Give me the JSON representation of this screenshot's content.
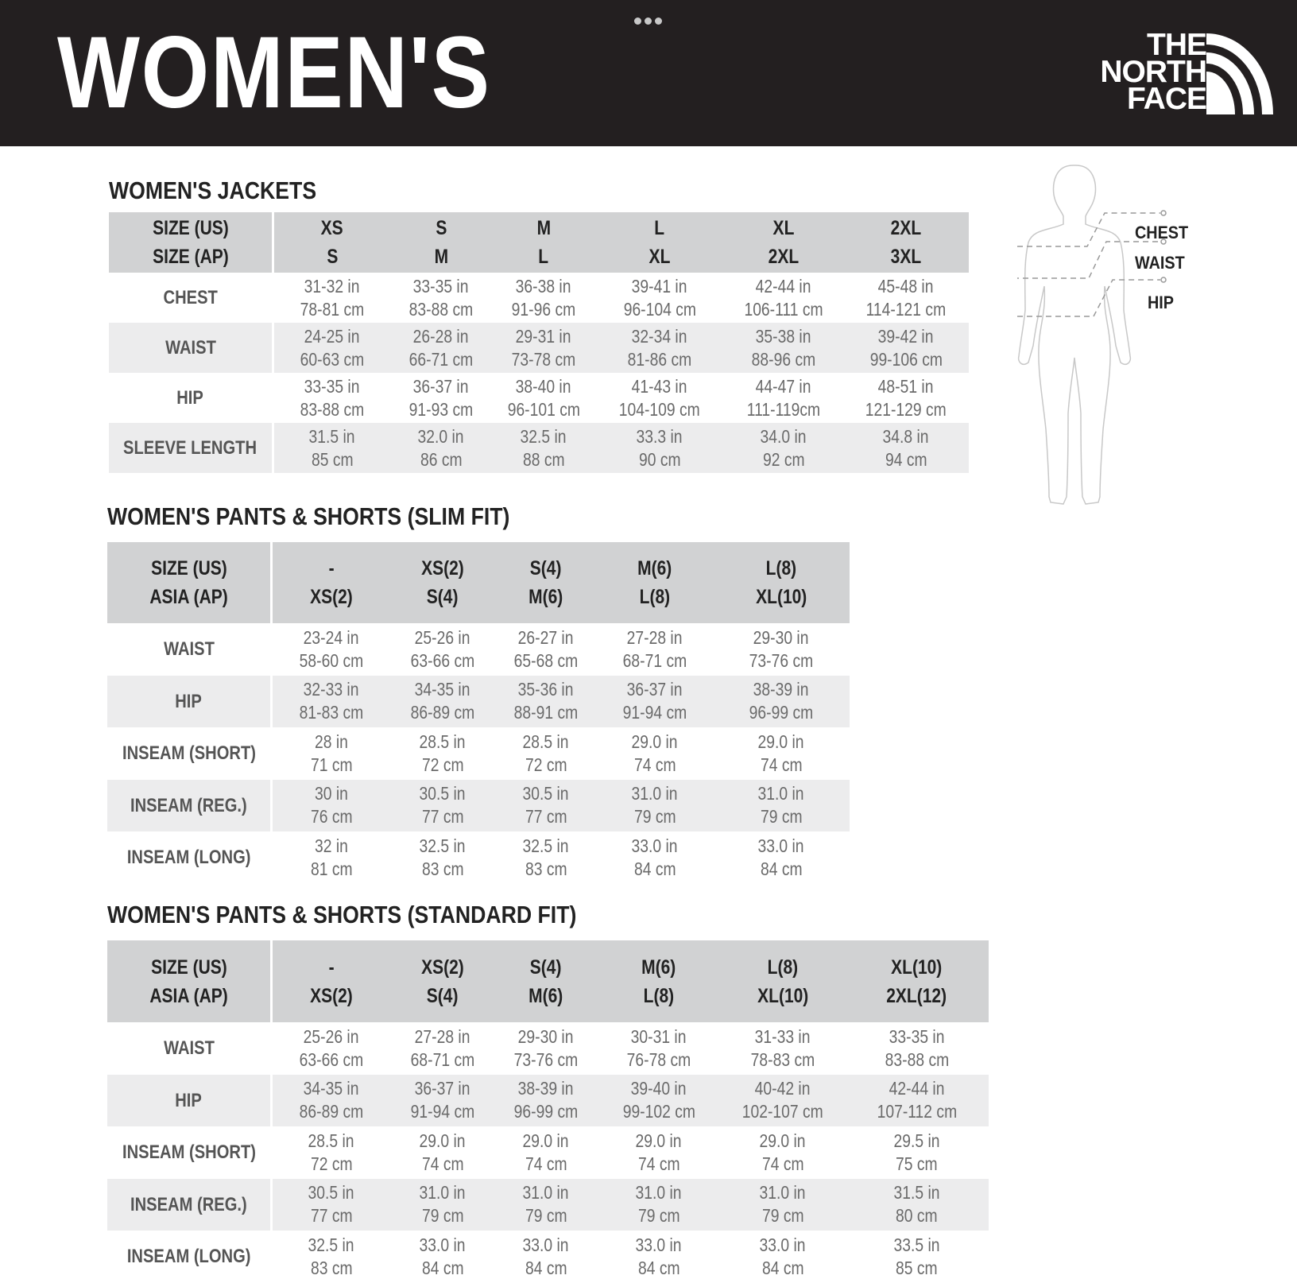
{
  "header": {
    "title": "WOMEN'S",
    "logo_text": [
      "THE",
      "NORTH",
      "FACE"
    ],
    "menu_icon": "more-dots-icon"
  },
  "colors": {
    "header_bg": "#231f20",
    "table_header_bg": "#d1d2d3",
    "row_alt_bg": "#ececed"
  },
  "body_diagram": {
    "labels": [
      "CHEST",
      "WAIST",
      "HIP"
    ]
  },
  "tables": [
    {
      "title": "WOMEN'S JACKETS",
      "header_rows": [
        [
          "SIZE (US)",
          "XS",
          "S",
          "M",
          "L",
          "XL",
          "2XL"
        ],
        [
          "SIZE (AP)",
          "S",
          "M",
          "L",
          "XL",
          "2XL",
          "3XL"
        ]
      ],
      "rows": [
        {
          "label": "CHEST",
          "cells": [
            [
              "31-32 in",
              "78-81 cm"
            ],
            [
              "33-35 in",
              "83-88 cm"
            ],
            [
              "36-38 in",
              "91-96 cm"
            ],
            [
              "39-41 in",
              "96-104 cm"
            ],
            [
              "42-44 in",
              "106-111 cm"
            ],
            [
              "45-48 in",
              "114-121 cm"
            ]
          ]
        },
        {
          "label": "WAIST",
          "cells": [
            [
              "24-25 in",
              "60-63 cm"
            ],
            [
              "26-28 in",
              "66-71 cm"
            ],
            [
              "29-31 in",
              "73-78 cm"
            ],
            [
              "32-34 in",
              "81-86 cm"
            ],
            [
              "35-38 in",
              "88-96 cm"
            ],
            [
              "39-42 in",
              "99-106 cm"
            ]
          ]
        },
        {
          "label": "HIP",
          "cells": [
            [
              "33-35 in",
              "83-88 cm"
            ],
            [
              "36-37 in",
              "91-93 cm"
            ],
            [
              "38-40 in",
              "96-101 cm"
            ],
            [
              "41-43 in",
              "104-109 cm"
            ],
            [
              "44-47 in",
              "111-119cm"
            ],
            [
              "48-51 in",
              "121-129 cm"
            ]
          ]
        },
        {
          "label": "SLEEVE LENGTH",
          "cells": [
            [
              "31.5 in",
              "85 cm"
            ],
            [
              "32.0 in",
              "86 cm"
            ],
            [
              "32.5 in",
              "88 cm"
            ],
            [
              "33.3 in",
              "90 cm"
            ],
            [
              "34.0 in",
              "92 cm"
            ],
            [
              "34.8 in",
              "94 cm"
            ]
          ]
        }
      ]
    },
    {
      "title": "WOMEN'S PANTS & SHORTS (SLIM FIT)",
      "header_rows": [
        [
          "SIZE (US)",
          "-",
          "XS(2)",
          "S(4)",
          "M(6)",
          "L(8)"
        ],
        [
          "ASIA (AP)",
          "XS(2)",
          "S(4)",
          "M(6)",
          "L(8)",
          "XL(10)"
        ]
      ],
      "rows": [
        {
          "label": "WAIST",
          "cells": [
            [
              "23-24 in",
              "58-60 cm"
            ],
            [
              "25-26 in",
              "63-66 cm"
            ],
            [
              "26-27 in",
              "65-68 cm"
            ],
            [
              "27-28 in",
              "68-71 cm"
            ],
            [
              "29-30 in",
              "73-76 cm"
            ]
          ]
        },
        {
          "label": "HIP",
          "cells": [
            [
              "32-33 in",
              "81-83 cm"
            ],
            [
              "34-35 in",
              "86-89 cm"
            ],
            [
              "35-36 in",
              "88-91 cm"
            ],
            [
              "36-37 in",
              "91-94 cm"
            ],
            [
              "38-39 in",
              "96-99 cm"
            ]
          ]
        },
        {
          "label": "INSEAM (SHORT)",
          "cells": [
            [
              "28 in",
              "71 cm"
            ],
            [
              "28.5 in",
              "72 cm"
            ],
            [
              "28.5 in",
              "72 cm"
            ],
            [
              "29.0 in",
              "74 cm"
            ],
            [
              "29.0 in",
              "74 cm"
            ]
          ]
        },
        {
          "label": "INSEAM (REG.)",
          "cells": [
            [
              "30 in",
              "76 cm"
            ],
            [
              "30.5 in",
              "77 cm"
            ],
            [
              "30.5 in",
              "77 cm"
            ],
            [
              "31.0 in",
              "79 cm"
            ],
            [
              "31.0 in",
              "79 cm"
            ]
          ]
        },
        {
          "label": "INSEAM (LONG)",
          "cells": [
            [
              "32 in",
              "81 cm"
            ],
            [
              "32.5 in",
              "83 cm"
            ],
            [
              "32.5 in",
              "83 cm"
            ],
            [
              "33.0 in",
              "84 cm"
            ],
            [
              "33.0 in",
              "84 cm"
            ]
          ]
        }
      ]
    },
    {
      "title": "WOMEN'S PANTS & SHORTS (STANDARD FIT)",
      "header_rows": [
        [
          "SIZE (US)",
          "-",
          "XS(2)",
          "S(4)",
          "M(6)",
          "L(8)",
          "XL(10)"
        ],
        [
          "ASIA (AP)",
          "XS(2)",
          "S(4)",
          "M(6)",
          "L(8)",
          "XL(10)",
          "2XL(12)"
        ]
      ],
      "rows": [
        {
          "label": "WAIST",
          "cells": [
            [
              "25-26 in",
              "63-66 cm"
            ],
            [
              "27-28 in",
              "68-71 cm"
            ],
            [
              "29-30 in",
              "73-76 cm"
            ],
            [
              "30-31 in",
              "76-78 cm"
            ],
            [
              "31-33 in",
              "78-83 cm"
            ],
            [
              "33-35 in",
              "83-88 cm"
            ]
          ]
        },
        {
          "label": "HIP",
          "cells": [
            [
              "34-35 in",
              "86-89 cm"
            ],
            [
              "36-37 in",
              "91-94 cm"
            ],
            [
              "38-39 in",
              "96-99 cm"
            ],
            [
              "39-40 in",
              "99-102 cm"
            ],
            [
              "40-42 in",
              "102-107 cm"
            ],
            [
              "42-44 in",
              "107-112 cm"
            ]
          ]
        },
        {
          "label": "INSEAM (SHORT)",
          "cells": [
            [
              "28.5 in",
              "72 cm"
            ],
            [
              "29.0 in",
              "74 cm"
            ],
            [
              "29.0 in",
              "74 cm"
            ],
            [
              "29.0 in",
              "74 cm"
            ],
            [
              "29.0 in",
              "74 cm"
            ],
            [
              "29.5 in",
              "75 cm"
            ]
          ]
        },
        {
          "label": "INSEAM (REG.)",
          "cells": [
            [
              "30.5 in",
              "77 cm"
            ],
            [
              "31.0 in",
              "79 cm"
            ],
            [
              "31.0 in",
              "79 cm"
            ],
            [
              "31.0 in",
              "79 cm"
            ],
            [
              "31.0 in",
              "79 cm"
            ],
            [
              "31.5 in",
              "80 cm"
            ]
          ]
        },
        {
          "label": "INSEAM (LONG)",
          "cells": [
            [
              "32.5 in",
              "83 cm"
            ],
            [
              "33.0 in",
              "84 cm"
            ],
            [
              "33.0 in",
              "84 cm"
            ],
            [
              "33.0 in",
              "84 cm"
            ],
            [
              "33.0 in",
              "84 cm"
            ],
            [
              "33.5 in",
              "85 cm"
            ]
          ]
        }
      ]
    }
  ]
}
